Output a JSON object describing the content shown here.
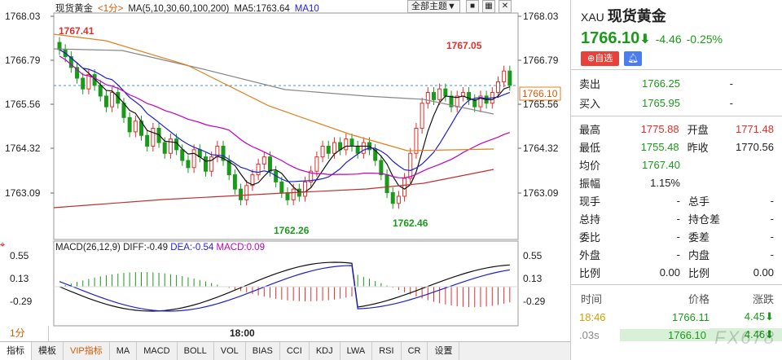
{
  "legend": {
    "name": "现货黄金",
    "period": "<1分>",
    "ma_params": "MA(5,10,30,60,100,200)",
    "ma5": "MA5:1763.64",
    "ma10": "MA10",
    "theme": "全部主题▼"
  },
  "macd_legend": {
    "params": "MACD(26,12,9)",
    "diff": "DIFF:-0.49",
    "dea": "DEA:-0.54",
    "macd": "MACD:0.09"
  },
  "price_axis": [
    "1768.03",
    "1766.79",
    "1765.56",
    "1764.32",
    "1763.09"
  ],
  "macd_axis": [
    "0.55",
    "0.13",
    "-0.29"
  ],
  "current_price_label": "1766.10",
  "annotations": {
    "high": "1767.41",
    "high2": "1767.05",
    "low": "1762.26",
    "low2": "1762.46"
  },
  "time_label": "18:00",
  "period_button": "1分",
  "tabs": [
    "指标",
    "模板",
    "VIP指标",
    "MA",
    "MACD",
    "BOLL",
    "VOL",
    "BIAS",
    "CCI",
    "KDJ",
    "LWA",
    "RSI",
    "CR",
    "设置"
  ],
  "panel": {
    "code": "XAU",
    "name": "现货黄金",
    "price": "1766.10",
    "change": "-4.46",
    "change_pct": "-0.25%",
    "watch_button": "自选",
    "sell_label": "卖出",
    "sell_value": "1766.25",
    "sell_vol": "-",
    "buy_label": "买入",
    "buy_value": "1765.95",
    "buy_vol": "-",
    "stats": [
      {
        "l": "最高",
        "v": "1775.88",
        "vc": "red",
        "l2": "开盘",
        "v2": "1771.48",
        "v2c": "red"
      },
      {
        "l": "最低",
        "v": "1755.48",
        "vc": "green",
        "l2": "昨收",
        "v2": "1770.56",
        "v2c": ""
      },
      {
        "l": "均价",
        "v": "1767.40",
        "vc": "green",
        "l2": "",
        "v2": "",
        "v2c": ""
      },
      {
        "l": "振幅",
        "v": "1.15%",
        "vc": "",
        "l2": "",
        "v2": "",
        "v2c": ""
      },
      {
        "l": "现手",
        "v": "-",
        "vc": "",
        "l2": "总手",
        "v2": "-",
        "v2c": ""
      },
      {
        "l": "总持",
        "v": "-",
        "vc": "",
        "l2": "持仓差",
        "v2": "-",
        "v2c": ""
      },
      {
        "l": "委比",
        "v": "-",
        "vc": "",
        "l2": "委差",
        "v2": "-",
        "v2c": ""
      },
      {
        "l": "外盘",
        "v": "-",
        "vc": "",
        "l2": "内盘",
        "v2": "-",
        "v2c": ""
      },
      {
        "l": "比例",
        "v": "0.00",
        "vc": "",
        "l2": "比例",
        "v2": "0.00",
        "v2c": ""
      }
    ],
    "trade_head": [
      "时间",
      "价格",
      "涨跌"
    ],
    "trades": [
      {
        "t": "18:46",
        "p": "1766.11",
        "c": "4.45"
      },
      {
        "t": ".03s",
        "p": "1766.10",
        "c": "4.46"
      }
    ],
    "watermark": "FX678"
  },
  "colors": {
    "up": "#e0302b",
    "down": "#1a9a1a",
    "accent": "#d65a00",
    "ma_blue": "#1f1fd0"
  }
}
